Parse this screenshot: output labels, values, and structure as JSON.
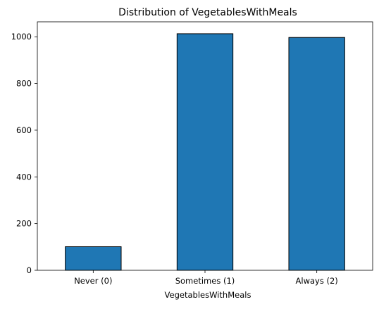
{
  "chart_data": {
    "type": "bar",
    "title": "Distribution of VegetablesWithMeals",
    "xlabel": "VegetablesWithMeals",
    "ylabel": "",
    "categories": [
      "Never (0)",
      "Sometimes (1)",
      "Always (2)"
    ],
    "values": [
      101,
      1013,
      997
    ],
    "ylim": [
      0,
      1064
    ],
    "yticks": [
      0,
      200,
      400,
      600,
      800,
      1000
    ],
    "grid": false,
    "legend": "none",
    "colors": {
      "bar_fill": "#1f77b4",
      "bar_edge": "#000000",
      "axis": "#000000"
    }
  }
}
